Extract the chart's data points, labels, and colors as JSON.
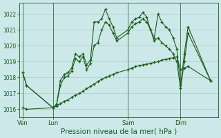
{
  "background_color": "#cce8e8",
  "grid_color": "#aacccc",
  "line_color": "#1a5c1a",
  "xlabel": "Pression niveau de la mer( hPa )",
  "xlabel_fontsize": 7.5,
  "ylim": [
    1015.5,
    1022.7
  ],
  "yticks": [
    1016,
    1017,
    1018,
    1019,
    1020,
    1021,
    1022
  ],
  "day_labels": [
    "Ven",
    "Lun",
    "Sam",
    "Dim"
  ],
  "day_positions": [
    0,
    8,
    28,
    42
  ],
  "series1_x": [
    0,
    1,
    8,
    9,
    10,
    11,
    12,
    13,
    14,
    15,
    16,
    17,
    18,
    19,
    20,
    21,
    22,
    23,
    24,
    25,
    28,
    29,
    30,
    31,
    32,
    33,
    34,
    35,
    36,
    37,
    38,
    39,
    40,
    41,
    42,
    43,
    44,
    50
  ],
  "series1_y": [
    1018.3,
    1017.5,
    1016.1,
    1016.3,
    1017.8,
    1018.2,
    1018.3,
    1018.6,
    1019.5,
    1019.3,
    1019.5,
    1018.8,
    1019.1,
    1021.5,
    1021.5,
    1021.7,
    1022.3,
    1021.7,
    1021.2,
    1020.5,
    1021.0,
    1021.5,
    1021.7,
    1021.8,
    1022.1,
    1021.8,
    1021.0,
    1020.5,
    1022.0,
    1021.5,
    1021.2,
    1021.0,
    1020.5,
    1019.8,
    1017.5,
    1019.5,
    1021.2,
    1017.8
  ],
  "series2_x": [
    0,
    1,
    8,
    9,
    10,
    11,
    12,
    13,
    14,
    15,
    16,
    17,
    18,
    19,
    20,
    21,
    22,
    23,
    24,
    25,
    28,
    29,
    30,
    31,
    32,
    33,
    34,
    35,
    36,
    37,
    38,
    39,
    40,
    41,
    42,
    43,
    44,
    50
  ],
  "series2_y": [
    1016.1,
    1016.0,
    1016.1,
    1016.2,
    1016.35,
    1016.5,
    1016.6,
    1016.75,
    1016.9,
    1017.0,
    1017.15,
    1017.3,
    1017.45,
    1017.6,
    1017.75,
    1017.9,
    1018.0,
    1018.1,
    1018.2,
    1018.3,
    1018.5,
    1018.6,
    1018.7,
    1018.75,
    1018.8,
    1018.85,
    1018.9,
    1018.95,
    1019.0,
    1019.1,
    1019.15,
    1019.2,
    1019.25,
    1019.3,
    1018.5,
    1018.6,
    1018.7,
    1017.8
  ],
  "series3_x": [
    0,
    1,
    8,
    9,
    10,
    11,
    12,
    13,
    14,
    15,
    16,
    17,
    18,
    19,
    20,
    21,
    22,
    23,
    24,
    25,
    28,
    29,
    30,
    31,
    32,
    33,
    34,
    35,
    36,
    37,
    38,
    39,
    40,
    41,
    42,
    43,
    44,
    50
  ],
  "series3_y": [
    1018.3,
    1017.5,
    1016.1,
    1016.3,
    1017.5,
    1018.0,
    1018.1,
    1018.4,
    1019.2,
    1019.0,
    1019.3,
    1018.5,
    1018.9,
    1020.0,
    1020.2,
    1021.0,
    1021.5,
    1021.3,
    1020.8,
    1020.3,
    1020.8,
    1021.2,
    1021.4,
    1021.5,
    1021.7,
    1021.5,
    1021.0,
    1020.3,
    1020.5,
    1020.2,
    1020.0,
    1019.8,
    1019.5,
    1019.0,
    1017.3,
    1019.0,
    1020.8,
    1017.8
  ],
  "xlim": [
    -1,
    52
  ]
}
